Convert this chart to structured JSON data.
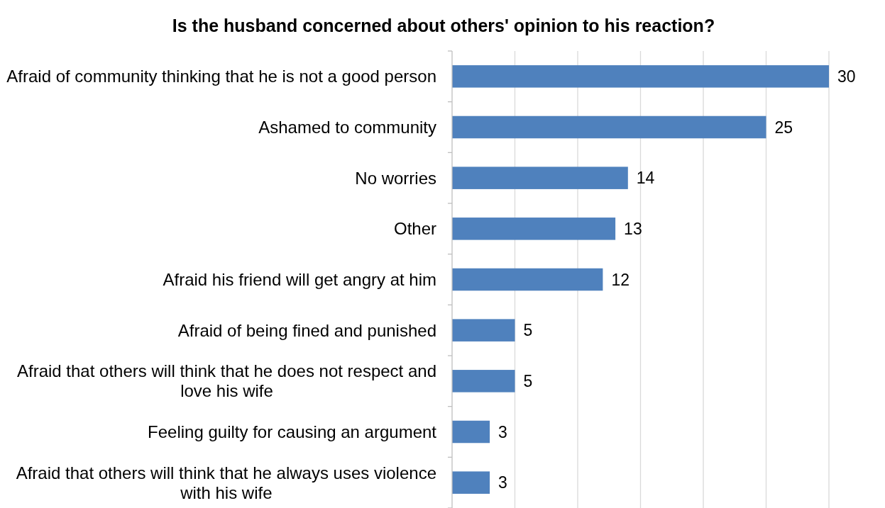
{
  "chart_data": {
    "type": "bar",
    "orientation": "horizontal",
    "title": "Is the husband concerned about others' opinion to his reaction?",
    "categories": [
      "Afraid of community thinking that he is not a good person",
      "Ashamed to community",
      "No worries",
      "Other",
      "Afraid his friend will get angry at him",
      "Afraid of being fined and punished",
      "Afraid that others will think that he does not respect and love his wife",
      "Feeling guilty for causing an argument",
      "Afraid that others will think that he always uses violence with his wife"
    ],
    "values": [
      30,
      25,
      14,
      13,
      12,
      5,
      5,
      3,
      3
    ],
    "color": "#4f81bd",
    "xlim": [
      0,
      30
    ],
    "xticks": [
      0,
      5,
      10,
      15,
      20,
      25,
      30
    ],
    "tick_labels": "y",
    "grid": "x",
    "data_labels": true
  }
}
